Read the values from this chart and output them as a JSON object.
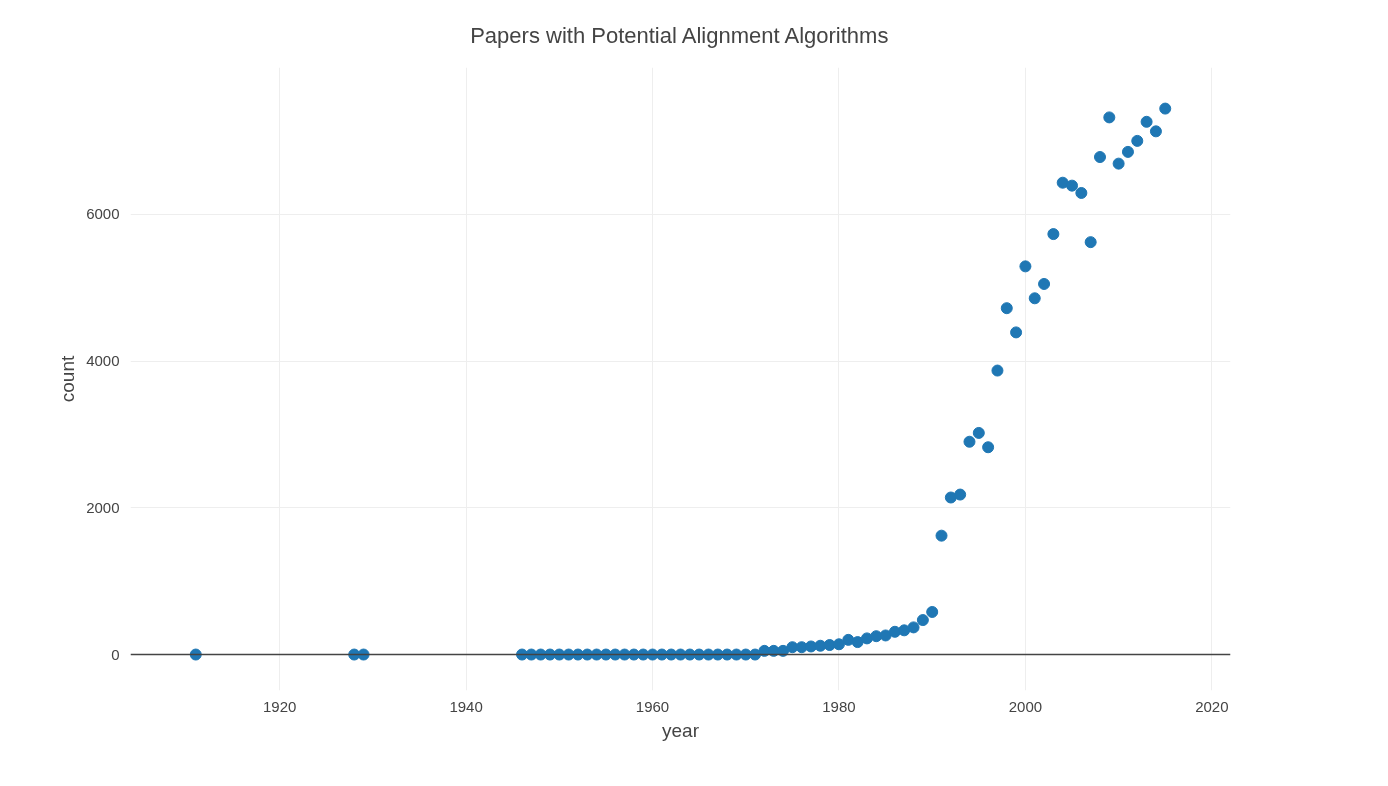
{
  "chart_data": {
    "type": "scatter",
    "title": "Papers with Potential Alignment Algorithms",
    "xlabel": "year",
    "ylabel": "count",
    "x": [
      1911,
      1928,
      1929,
      1946,
      1947,
      1948,
      1949,
      1950,
      1951,
      1952,
      1953,
      1954,
      1955,
      1956,
      1957,
      1958,
      1959,
      1960,
      1961,
      1962,
      1963,
      1964,
      1965,
      1966,
      1967,
      1968,
      1969,
      1970,
      1971,
      1972,
      1973,
      1974,
      1975,
      1976,
      1977,
      1978,
      1979,
      1980,
      1981,
      1982,
      1983,
      1984,
      1985,
      1986,
      1987,
      1988,
      1989,
      1990,
      1991,
      1992,
      1993,
      1994,
      1995,
      1996,
      1997,
      1998,
      1999,
      2000,
      2001,
      2002,
      2003,
      2004,
      2005,
      2006,
      2007,
      2008,
      2009,
      2010,
      2011,
      2012,
      2013,
      2014,
      2015
    ],
    "series": [
      {
        "color": "#1f77b4",
        "values": [
          0,
          0,
          0,
          0,
          0,
          0,
          0,
          0,
          0,
          0,
          0,
          0,
          0,
          0,
          0,
          0,
          0,
          0,
          0,
          0,
          0,
          0,
          0,
          0,
          0,
          0,
          0,
          0,
          0,
          50,
          50,
          50,
          100,
          100,
          110,
          120,
          130,
          140,
          200,
          170,
          220,
          250,
          260,
          310,
          330,
          370,
          470,
          580,
          1620,
          2140,
          2180,
          2900,
          3020,
          2825,
          3870,
          4720,
          4390,
          5290,
          4855,
          5050,
          5730,
          6430,
          6390,
          6290,
          5620,
          6780,
          7320,
          6690,
          6850,
          7000,
          7260,
          7130,
          7440
        ]
      }
    ],
    "xlim": [
      1904,
      2022
    ],
    "ylim": [
      -490,
      8000
    ],
    "xticks": [
      1920,
      1940,
      1960,
      1980,
      2000,
      2020
    ],
    "yticks": [
      0,
      2000,
      4000,
      6000
    ],
    "ref_lines": [
      {
        "axis": "y",
        "value": 0,
        "color": "#444444"
      }
    ],
    "grid": true,
    "marker": "circle"
  }
}
